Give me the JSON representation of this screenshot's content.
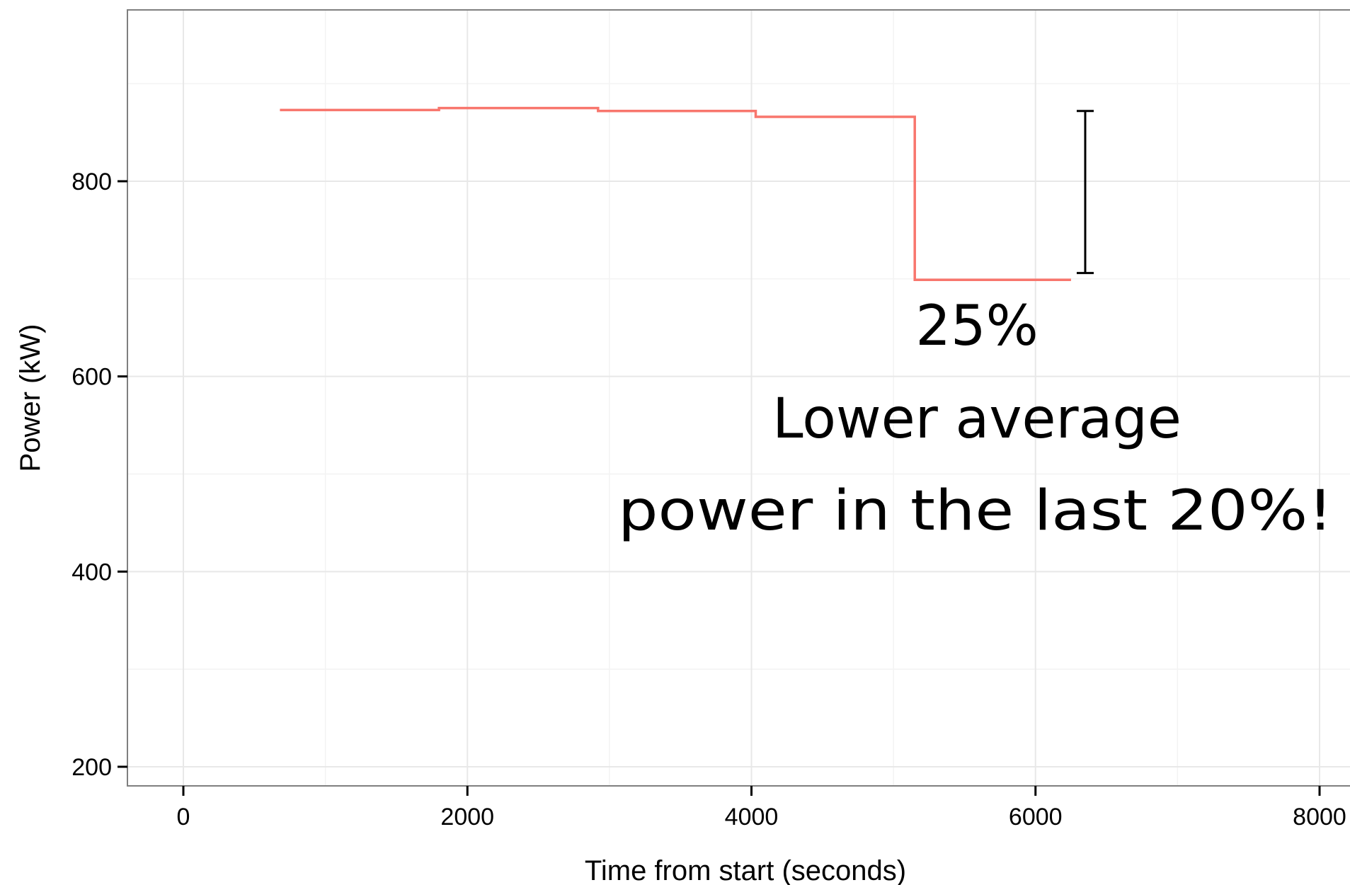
{
  "chart_data": {
    "type": "line",
    "title": "",
    "xlabel": "Time from start (seconds)",
    "ylabel": "Power (kW)",
    "xlim": [
      -400,
      8000
    ],
    "ylim": [
      180,
      980
    ],
    "x_ticks": [
      0,
      2000,
      4000,
      6000,
      8000
    ],
    "x_tick_labels": [
      "0",
      "2000",
      "4000",
      "6000",
      "8000"
    ],
    "y_ticks": [
      200,
      400,
      600,
      800
    ],
    "y_tick_labels": [
      "200",
      "400",
      "600",
      "800"
    ],
    "grid": true,
    "line_color": "#F8766D",
    "series": [
      {
        "x": [
          680,
          1800,
          1800,
          2920,
          2920,
          4030,
          4030,
          5150,
          5150,
          6250
        ],
        "y": [
          873,
          873,
          875,
          875,
          872,
          872,
          866,
          866,
          699,
          699
        ]
      }
    ],
    "error_bar": {
      "x": 6350,
      "y_low": 706,
      "y_high": 872
    },
    "annotations": [
      "25%",
      "Lower average",
      "power in the last 20%!"
    ]
  }
}
